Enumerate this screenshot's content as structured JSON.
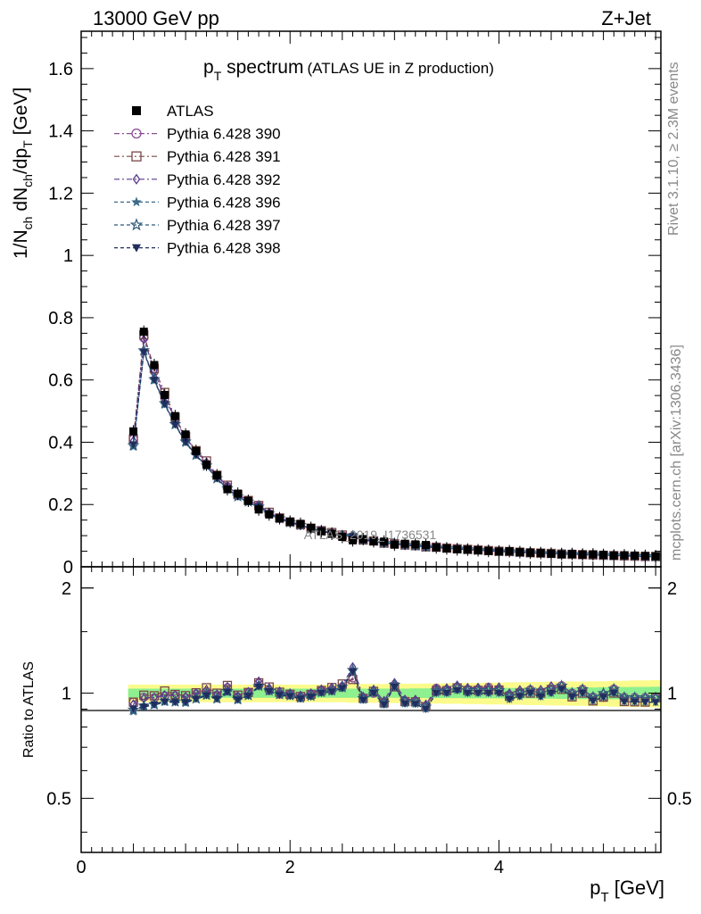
{
  "header": {
    "energy_label": "13000 GeV pp",
    "process_label": "Z+Jet"
  },
  "side_labels": {
    "rivet": "Rivet 3.1.10, ≥ 2.3M events",
    "mcplots": "mcplots.cern.ch [arXiv:1306.3436]"
  },
  "chart_data": {
    "type": "scatter",
    "title": {
      "main": "p",
      "sub": "T",
      "rest": " spectrum",
      "note": "(ATLAS UE in Z production)"
    },
    "xlabel": {
      "main": "p",
      "sub": "T",
      "rest": " [GeV]"
    },
    "ylabel_upper": "1/N_ch dN_ch/dp_T [GeV]",
    "ylabel_lower": "Ratio to ATLAS",
    "watermark": "ATLAS_2019_I1736531",
    "xlim": [
      0,
      5.55
    ],
    "ylim_upper": [
      0,
      1.72
    ],
    "ylim_lower": [
      0.35,
      2.3
    ],
    "x_ticks": [
      "0",
      "2",
      "4"
    ],
    "y_ticks_upper": [
      "0",
      "0.2",
      "0.4",
      "0.6",
      "0.8",
      "1",
      "1.2",
      "1.4",
      "1.6"
    ],
    "y_ticks_lower": [
      "0.5",
      "1",
      "2"
    ],
    "legend_position": "top-left",
    "x": [
      0.5,
      0.6,
      0.7,
      0.8,
      0.9,
      1.0,
      1.1,
      1.2,
      1.3,
      1.4,
      1.5,
      1.6,
      1.7,
      1.8,
      1.9,
      2.0,
      2.1,
      2.2,
      2.3,
      2.4,
      2.5,
      2.6,
      2.7,
      2.8,
      2.9,
      3.0,
      3.1,
      3.2,
      3.3,
      3.4,
      3.5,
      3.6,
      3.7,
      3.8,
      3.9,
      4.0,
      4.1,
      4.2,
      4.3,
      4.4,
      4.5,
      4.6,
      4.7,
      4.8,
      4.9,
      5.0,
      5.1,
      5.2,
      5.3,
      5.4,
      5.5
    ],
    "data": {
      "name": "ATLAS",
      "values": [
        0.435,
        0.755,
        0.648,
        0.552,
        0.484,
        0.425,
        0.372,
        0.328,
        0.294,
        0.249,
        0.235,
        0.212,
        0.184,
        0.168,
        0.156,
        0.145,
        0.138,
        0.125,
        0.114,
        0.106,
        0.096,
        0.085,
        0.089,
        0.082,
        0.081,
        0.071,
        0.074,
        0.072,
        0.07,
        0.062,
        0.059,
        0.056,
        0.055,
        0.053,
        0.051,
        0.049,
        0.05,
        0.047,
        0.045,
        0.044,
        0.042,
        0.04,
        0.041,
        0.039,
        0.04,
        0.038,
        0.036,
        0.037,
        0.036,
        0.035,
        0.034
      ]
    },
    "band_total": [
      0.058,
      0.058,
      0.058,
      0.058,
      0.058,
      0.058,
      0.058,
      0.058,
      0.058,
      0.058,
      0.058,
      0.058,
      0.058,
      0.058,
      0.058,
      0.058,
      0.058,
      0.058,
      0.058,
      0.058,
      0.058,
      0.062,
      0.062,
      0.062,
      0.062,
      0.064,
      0.064,
      0.064,
      0.066,
      0.066,
      0.068,
      0.068,
      0.07,
      0.07,
      0.072,
      0.072,
      0.074,
      0.074,
      0.076,
      0.076,
      0.078,
      0.078,
      0.08,
      0.08,
      0.082,
      0.082,
      0.085,
      0.085,
      0.088,
      0.088,
      0.09
    ],
    "band_stat": [
      0.03,
      0.03,
      0.03,
      0.03,
      0.03,
      0.03,
      0.03,
      0.03,
      0.03,
      0.03,
      0.03,
      0.03,
      0.03,
      0.03,
      0.03,
      0.03,
      0.03,
      0.03,
      0.03,
      0.03,
      0.03,
      0.03,
      0.03,
      0.03,
      0.03,
      0.03,
      0.03,
      0.032,
      0.032,
      0.032,
      0.032,
      0.032,
      0.034,
      0.034,
      0.034,
      0.034,
      0.035,
      0.035,
      0.035,
      0.036,
      0.036,
      0.037,
      0.037,
      0.038,
      0.038,
      0.04,
      0.04,
      0.041,
      0.042,
      0.042,
      0.043
    ],
    "series": [
      {
        "name": "Pythia 6.428 390",
        "color": "#8c4e93",
        "marker": "circle-open",
        "dash": "6,3,2,3",
        "values": [
          0.41,
          0.735,
          0.628,
          0.542,
          0.476,
          0.412,
          0.37,
          0.33,
          0.29,
          0.258,
          0.229,
          0.213,
          0.196,
          0.171,
          0.155,
          0.144,
          0.134,
          0.124,
          0.116,
          0.108,
          0.1,
          0.094,
          0.086,
          0.082,
          0.076,
          0.074,
          0.07,
          0.068,
          0.064,
          0.064,
          0.06,
          0.058,
          0.056,
          0.054,
          0.053,
          0.05,
          0.049,
          0.047,
          0.046,
          0.044,
          0.043,
          0.042,
          0.041,
          0.04,
          0.039,
          0.037,
          0.037,
          0.036,
          0.035,
          0.034,
          0.033
        ]
      },
      {
        "name": "Pythia 6.428 391",
        "color": "#7b4848",
        "marker": "square-open",
        "dash": "6,3,2,3",
        "values": [
          0.41,
          0.745,
          0.637,
          0.56,
          0.48,
          0.418,
          0.373,
          0.34,
          0.294,
          0.262,
          0.232,
          0.213,
          0.197,
          0.175,
          0.157,
          0.144,
          0.135,
          0.124,
          0.116,
          0.11,
          0.102,
          0.093,
          0.086,
          0.083,
          0.076,
          0.074,
          0.07,
          0.068,
          0.064,
          0.063,
          0.06,
          0.058,
          0.056,
          0.054,
          0.052,
          0.05,
          0.049,
          0.047,
          0.045,
          0.044,
          0.043,
          0.041,
          0.04,
          0.039,
          0.038,
          0.037,
          0.036,
          0.035,
          0.034,
          0.033,
          0.033
        ]
      },
      {
        "name": "Pythia 6.428 392",
        "color": "#5a3a8e",
        "marker": "diamond-open",
        "dash": "6,3,2,3",
        "values": [
          0.405,
          0.73,
          0.63,
          0.545,
          0.478,
          0.415,
          0.372,
          0.336,
          0.292,
          0.26,
          0.231,
          0.214,
          0.199,
          0.174,
          0.158,
          0.145,
          0.136,
          0.125,
          0.117,
          0.11,
          0.101,
          0.101,
          0.087,
          0.084,
          0.077,
          0.076,
          0.071,
          0.069,
          0.065,
          0.064,
          0.061,
          0.059,
          0.057,
          0.055,
          0.053,
          0.051,
          0.05,
          0.048,
          0.046,
          0.045,
          0.044,
          0.042,
          0.041,
          0.04,
          0.039,
          0.038,
          0.037,
          0.036,
          0.035,
          0.034,
          0.033
        ]
      },
      {
        "name": "Pythia 6.428 396",
        "color": "#3b6a8a",
        "marker": "star-filled",
        "dash": "4,3",
        "values": [
          0.385,
          0.69,
          0.598,
          0.52,
          0.455,
          0.398,
          0.357,
          0.322,
          0.282,
          0.25,
          0.224,
          0.208,
          0.192,
          0.17,
          0.154,
          0.142,
          0.133,
          0.122,
          0.114,
          0.107,
          0.099,
          0.098,
          0.085,
          0.082,
          0.075,
          0.074,
          0.069,
          0.067,
          0.063,
          0.062,
          0.059,
          0.057,
          0.055,
          0.053,
          0.051,
          0.049,
          0.048,
          0.046,
          0.045,
          0.043,
          0.042,
          0.041,
          0.04,
          0.039,
          0.038,
          0.037,
          0.036,
          0.035,
          0.034,
          0.033,
          0.032
        ]
      },
      {
        "name": "Pythia 6.428 397",
        "color": "#2f5a7a",
        "marker": "star-open",
        "dash": "4,3",
        "values": [
          0.39,
          0.695,
          0.602,
          0.525,
          0.458,
          0.402,
          0.359,
          0.325,
          0.284,
          0.252,
          0.226,
          0.209,
          0.193,
          0.171,
          0.155,
          0.143,
          0.134,
          0.123,
          0.115,
          0.108,
          0.1,
          0.099,
          0.086,
          0.083,
          0.076,
          0.075,
          0.07,
          0.068,
          0.064,
          0.063,
          0.06,
          0.058,
          0.056,
          0.054,
          0.052,
          0.05,
          0.049,
          0.047,
          0.046,
          0.044,
          0.043,
          0.042,
          0.041,
          0.04,
          0.039,
          0.038,
          0.037,
          0.036,
          0.035,
          0.034,
          0.033
        ]
      },
      {
        "name": "Pythia 6.428 398",
        "color": "#1f2e5e",
        "marker": "triangle-down-filled",
        "dash": "4,3",
        "values": [
          0.392,
          0.69,
          0.6,
          0.522,
          0.456,
          0.4,
          0.358,
          0.323,
          0.283,
          0.251,
          0.225,
          0.208,
          0.192,
          0.17,
          0.154,
          0.142,
          0.133,
          0.122,
          0.114,
          0.107,
          0.099,
          0.098,
          0.085,
          0.082,
          0.075,
          0.074,
          0.069,
          0.067,
          0.063,
          0.062,
          0.059,
          0.057,
          0.055,
          0.053,
          0.051,
          0.049,
          0.048,
          0.046,
          0.045,
          0.043,
          0.042,
          0.041,
          0.04,
          0.039,
          0.038,
          0.037,
          0.036,
          0.035,
          0.034,
          0.033,
          0.032
        ]
      }
    ]
  }
}
